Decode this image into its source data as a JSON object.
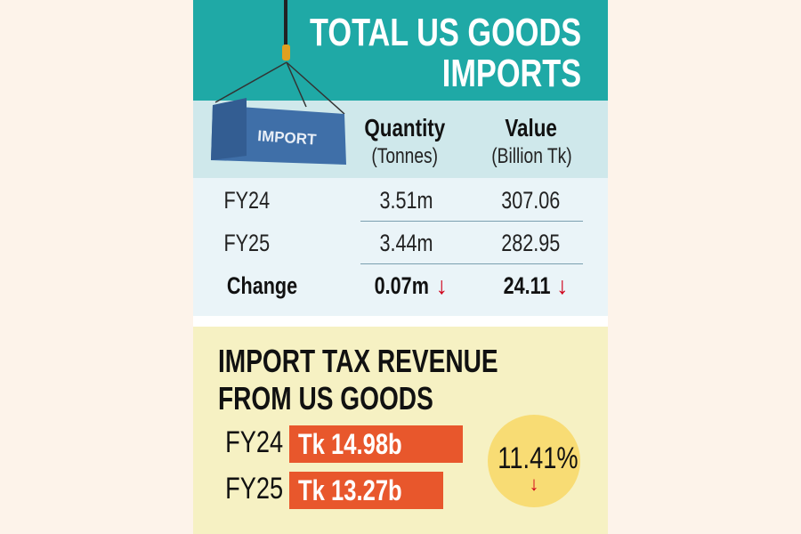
{
  "header": {
    "title_line1": "TOTAL US GOODS",
    "title_line2": "IMPORTS",
    "container_label": "IMPORT"
  },
  "table": {
    "columns": [
      {
        "label": "Quantity",
        "unit": "(Tonnes)"
      },
      {
        "label": "Value",
        "unit": "(Billion Tk)"
      }
    ],
    "rows": [
      {
        "label": "FY24",
        "quantity": "3.51m",
        "value": "307.06"
      },
      {
        "label": "FY25",
        "quantity": "3.44m",
        "value": "282.95"
      },
      {
        "label": "Change",
        "quantity": "0.07m",
        "value": "24.11",
        "arrow": "↓"
      }
    ]
  },
  "tax": {
    "title_line1": "IMPORT TAX REVENUE",
    "title_line2": "FROM US GOODS",
    "bars": [
      {
        "label": "FY24",
        "text": "Tk 14.98b"
      },
      {
        "label": "FY25",
        "text": "Tk 13.27b"
      }
    ],
    "change": "11.41%",
    "change_arrow": "↓"
  },
  "colors": {
    "teal": "#1fa9a6",
    "bar": "#e8572c",
    "down": "#d0021b",
    "circle": "#f8dc74"
  },
  "chart_data": {
    "type": "bar",
    "title": "IMPORT TAX REVENUE FROM US GOODS",
    "categories": [
      "FY24",
      "FY25"
    ],
    "values": [
      14.98,
      13.27
    ],
    "unit": "Tk billion",
    "change_percent": -11.41
  }
}
